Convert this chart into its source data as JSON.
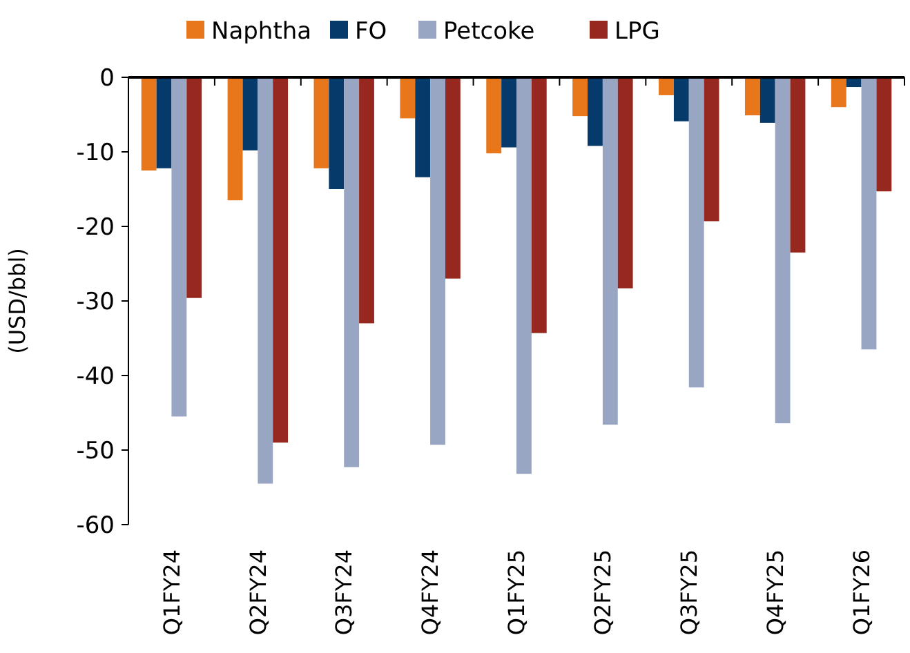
{
  "chart_data": {
    "type": "bar",
    "ylabel": "(USD/bbl)",
    "categories": [
      "Q1FY24",
      "Q2FY24",
      "Q3FY24",
      "Q4FY24",
      "Q1FY25",
      "Q2FY25",
      "Q3FY25",
      "Q4FY25",
      "Q1FY26"
    ],
    "series": [
      {
        "name": "Naphtha",
        "color": "#e8761a",
        "values": [
          -12.5,
          -16.5,
          -12.2,
          -5.5,
          -10.2,
          -5.2,
          -2.4,
          -5.1,
          -4.0
        ]
      },
      {
        "name": "FO",
        "color": "#063a6b",
        "values": [
          -12.2,
          -9.8,
          -15,
          -13.4,
          -9.4,
          -9.2,
          -5.9,
          -6.1,
          -1.3
        ]
      },
      {
        "name": "Petcoke",
        "color": "#98a6c3",
        "values": [
          -45.5,
          -54.5,
          -52.3,
          -49.3,
          -53.2,
          -46.6,
          -41.6,
          -46.4,
          -36.5
        ]
      },
      {
        "name": "LPG",
        "color": "#962820",
        "values": [
          -29.6,
          -49,
          -33,
          -27,
          -34.3,
          -28.3,
          -19.3,
          -23.5,
          -15.3
        ]
      }
    ],
    "ylim": [
      -60,
      0
    ],
    "yticks": [
      -60,
      -50,
      -40,
      -30,
      -20,
      -10,
      0
    ],
    "grid": false,
    "legend": "top"
  }
}
